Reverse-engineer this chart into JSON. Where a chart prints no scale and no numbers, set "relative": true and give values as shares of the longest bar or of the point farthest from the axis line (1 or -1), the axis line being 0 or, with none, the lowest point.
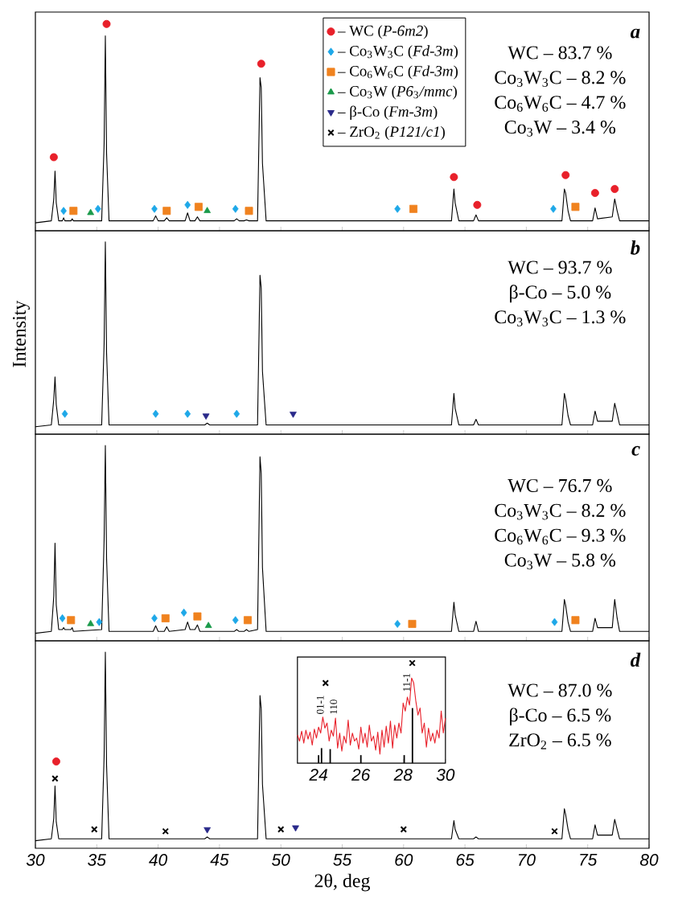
{
  "chart_data": [
    {
      "type": "line",
      "relative": true,
      "title": "a",
      "legend": "top",
      "tick_labels": false,
      "xlim": [
        30,
        80
      ],
      "xticks": [
        30,
        35,
        40,
        45,
        50,
        55,
        60,
        65,
        70,
        75,
        80
      ],
      "x": [
        30,
        31.3,
        31.5,
        31.6,
        31.7,
        31.9,
        32.2,
        32.3,
        32.4,
        32.9,
        33.0,
        33.1,
        35.4,
        35.6,
        35.7,
        35.8,
        36.0,
        39.6,
        39.8,
        40.0,
        40.5,
        40.7,
        40.9,
        42.2,
        42.4,
        42.6,
        43.0,
        43.2,
        43.4,
        43.8,
        44.0,
        44.2,
        46.2,
        46.4,
        46.6,
        47.0,
        47.2,
        47.4,
        48.1,
        48.3,
        48.4,
        48.5,
        48.8,
        63.9,
        64.1,
        64.2,
        64.5,
        65.7,
        65.9,
        66.1,
        72.9,
        73.1,
        73.2,
        73.4,
        73.6,
        75.4,
        75.6,
        75.8,
        77.0,
        77.2,
        77.4,
        77.6,
        80
      ],
      "annotations": [
        "WC – 83.7 %",
        "Co$_{3}$W$_{3}$C – 8.2 %",
        "Co$_{6}$W$_{6}$C – 4.7 %",
        "Co$_{3}$W – 3.4 %"
      ],
      "series": [
        {
          "color": "#000000",
          "values": [
            0,
            0.01,
            0.12,
            0.26,
            0.1,
            0.01,
            0.01,
            0.025,
            0.01,
            0.01,
            0.02,
            0.01,
            0.01,
            0.4,
            0.94,
            0.35,
            0.01,
            0.01,
            0.035,
            0.01,
            0.01,
            0.025,
            0.01,
            0.01,
            0.05,
            0.01,
            0.01,
            0.03,
            0.01,
            0.01,
            0.01,
            0.01,
            0.01,
            0.02,
            0.01,
            0.01,
            0.015,
            0.01,
            0.01,
            0.73,
            0.68,
            0.3,
            0.01,
            0.01,
            0.17,
            0.1,
            0.01,
            0.01,
            0.04,
            0.01,
            0.01,
            0.17,
            0.15,
            0.06,
            0.01,
            0.01,
            0.075,
            0.02,
            0.03,
            0.12,
            0.06,
            0.01,
            0.01
          ]
        },
        {
          "type": "scatter",
          "name": "– WC (*P-6m2*)",
          "color": "#e8202a",
          "marker": "circle",
          "x": [
            31.5,
            35.8,
            48.4,
            64.1,
            66.0,
            73.2,
            75.6,
            77.2
          ],
          "values": [
            0.33,
            1.0,
            0.8,
            0.23,
            0.09,
            0.24,
            0.15,
            0.17
          ]
        },
        {
          "type": "scatter",
          "name": "– Co$_{3}$W$_{3}$C (*Fd-3m*)",
          "color": "#1ea8e8",
          "marker": "diamond",
          "x": [
            32.3,
            35.1,
            39.7,
            42.4,
            46.3,
            59.5,
            72.2
          ],
          "values": [
            0.06,
            0.07,
            0.07,
            0.09,
            0.07,
            0.07,
            0.07
          ]
        },
        {
          "type": "scatter",
          "name": "– Co$_{6}$W$_{6}$C (*Fd-3m*)",
          "color": "#f0821e",
          "marker": "square",
          "x": [
            33.1,
            40.7,
            43.3,
            47.4,
            60.8,
            74.0
          ],
          "values": [
            0.06,
            0.06,
            0.08,
            0.06,
            0.07,
            0.08
          ]
        },
        {
          "type": "scatter",
          "name": "– Co$_{3}$W (*P6*$_{3}$*/mmc*)",
          "color": "#1a9a4a",
          "marker": "triangle",
          "x": [
            34.5,
            44.0
          ],
          "values": [
            0.05,
            0.06
          ]
        },
        {
          "type": "scatter",
          "name": "– β-Co (*Fm-3m*)",
          "color": "#2a2a8a",
          "marker": "triangle-down",
          "values": [
            null,
            null,
            null,
            null,
            null,
            null,
            null,
            null,
            null,
            null,
            null,
            null,
            null,
            null,
            null,
            null,
            null,
            null,
            null,
            null,
            null,
            null,
            null,
            null,
            null,
            null,
            null,
            null,
            null,
            null,
            null,
            null,
            null,
            null,
            null,
            null,
            null,
            null,
            null,
            null,
            null,
            null,
            null,
            null,
            null,
            null,
            null,
            null,
            null,
            null,
            null,
            null,
            null,
            null,
            null,
            null,
            null,
            null,
            null,
            null,
            null,
            null,
            null
          ]
        },
        {
          "type": "scatter",
          "name": "– ZrO$_{2}$ (*P121/c1*)",
          "color": "#000000",
          "marker": "cross",
          "values": [
            null,
            null,
            null,
            null,
            null,
            null,
            null,
            null,
            null,
            null,
            null,
            null,
            null,
            null,
            null,
            null,
            null,
            null,
            null,
            null,
            null,
            null,
            null,
            null,
            null,
            null,
            null,
            null,
            null,
            null,
            null,
            null,
            null,
            null,
            null,
            null,
            null,
            null,
            null,
            null,
            null,
            null,
            null,
            null,
            null,
            null,
            null,
            null,
            null,
            null,
            null,
            null,
            null,
            null,
            null,
            null,
            null,
            null,
            null,
            null,
            null,
            null,
            null
          ]
        }
      ]
    },
    {
      "type": "line",
      "relative": true,
      "title": "b",
      "ylabel": "Intensity",
      "tick_labels": false,
      "xlim": [
        30,
        80
      ],
      "xticks": [
        30,
        35,
        40,
        45,
        50,
        55,
        60,
        65,
        70,
        75,
        80
      ],
      "x": [
        30,
        31.3,
        31.5,
        31.6,
        31.7,
        31.9,
        32.2,
        32.3,
        32.4,
        32.9,
        33.0,
        33.1,
        35.4,
        35.6,
        35.7,
        35.8,
        36.0,
        39.6,
        39.8,
        40.0,
        40.5,
        40.7,
        40.9,
        42.2,
        42.4,
        42.6,
        43.0,
        43.2,
        43.4,
        43.8,
        44.0,
        44.2,
        46.2,
        46.4,
        46.6,
        47.0,
        47.2,
        47.4,
        48.1,
        48.3,
        48.4,
        48.5,
        48.8,
        63.9,
        64.1,
        64.2,
        64.5,
        65.7,
        65.9,
        66.1,
        72.9,
        73.1,
        73.2,
        73.4,
        73.6,
        75.4,
        75.6,
        75.8,
        77.0,
        77.2,
        77.4,
        77.6,
        80
      ],
      "annotations": [
        "WC – 93.7 %",
        "β-Co – 5.0 %",
        "Co$_{3}$W$_{3}$C – 1.3 %"
      ],
      "series": [
        {
          "color": "#000000",
          "values": [
            0,
            0.01,
            0.15,
            0.27,
            0.12,
            0.01,
            0.01,
            0.01,
            0.01,
            0.01,
            0.01,
            0.01,
            0.01,
            0.45,
            1,
            0.4,
            0.01,
            0.01,
            0.01,
            0.01,
            0.01,
            0.01,
            0.01,
            0.01,
            0.01,
            0.01,
            0.01,
            0.01,
            0.01,
            0.01,
            0.02,
            0.01,
            0.01,
            0.01,
            0.01,
            0.01,
            0.01,
            0.01,
            0.01,
            0.82,
            0.75,
            0.3,
            0.01,
            0.01,
            0.18,
            0.1,
            0.01,
            0.01,
            0.04,
            0.01,
            0.01,
            0.18,
            0.15,
            0.06,
            0.01,
            0.01,
            0.085,
            0.03,
            0.03,
            0.127,
            0.07,
            0.01,
            0.01
          ]
        },
        {
          "type": "scatter",
          "color": "#1ea8e8",
          "marker": "diamond",
          "x": [
            32.4,
            39.8,
            42.4,
            46.4
          ],
          "values": [
            0.07,
            0.07,
            0.07,
            0.07
          ]
        },
        {
          "type": "scatter",
          "color": "#2a2a8a",
          "marker": "triangle-down",
          "x": [
            43.9,
            51.0
          ],
          "values": [
            0.06,
            0.07
          ]
        }
      ]
    },
    {
      "type": "line",
      "relative": true,
      "title": "c",
      "tick_labels": false,
      "xlim": [
        30,
        80
      ],
      "xticks": [
        30,
        35,
        40,
        45,
        50,
        55,
        60,
        65,
        70,
        75,
        80
      ],
      "x": [
        30,
        31.3,
        31.5,
        31.6,
        31.7,
        31.9,
        32.2,
        32.3,
        32.4,
        32.9,
        33.0,
        33.1,
        35.4,
        35.6,
        35.7,
        35.8,
        36.0,
        39.6,
        39.8,
        40.0,
        40.5,
        40.7,
        40.9,
        42.2,
        42.4,
        42.6,
        43.0,
        43.2,
        43.4,
        43.8,
        44.0,
        44.2,
        46.2,
        46.4,
        46.6,
        47.0,
        47.2,
        47.4,
        48.1,
        48.3,
        48.4,
        48.5,
        48.8,
        63.9,
        64.1,
        64.2,
        64.5,
        65.7,
        65.9,
        66.1,
        72.9,
        73.1,
        73.2,
        73.4,
        73.6,
        75.4,
        75.6,
        75.8,
        77.0,
        77.2,
        77.4,
        77.6,
        80
      ],
      "annotations": [
        "WC – 76.7 %",
        "Co$_{3}$W$_{3}$C – 8.2 %",
        "Co$_{6}$W$_{6}$C – 9.3 %",
        "Co$_{3}$W – 5.8 %"
      ],
      "series": [
        {
          "color": "#000000",
          "values": [
            0,
            0.01,
            0.2,
            0.48,
            0.15,
            0.02,
            0.02,
            0.03,
            0.02,
            0.02,
            0.03,
            0.01,
            0.02,
            0.5,
            1,
            0.4,
            0.01,
            0.01,
            0.04,
            0.01,
            0.01,
            0.035,
            0.01,
            0.02,
            0.06,
            0.02,
            0.02,
            0.045,
            0.01,
            0.01,
            0.01,
            0.01,
            0.01,
            0.02,
            0.01,
            0.01,
            0.02,
            0.01,
            0.02,
            0.94,
            0.85,
            0.35,
            0.01,
            0.01,
            0.165,
            0.1,
            0.01,
            0.01,
            0.064,
            0.01,
            0.01,
            0.18,
            0.15,
            0.06,
            0.01,
            0.01,
            0.08,
            0.03,
            0.03,
            0.18,
            0.08,
            0.01,
            0.01
          ]
        },
        {
          "type": "scatter",
          "color": "#1ea8e8",
          "marker": "diamond",
          "x": [
            32.2,
            35.2,
            39.7,
            42.1,
            46.3,
            59.5,
            72.3
          ],
          "values": [
            0.08,
            0.06,
            0.08,
            0.11,
            0.07,
            0.05,
            0.06
          ]
        },
        {
          "type": "scatter",
          "color": "#f0821e",
          "marker": "square",
          "x": [
            32.9,
            40.6,
            43.2,
            47.3,
            60.7,
            74.0
          ],
          "values": [
            0.07,
            0.08,
            0.09,
            0.07,
            0.05,
            0.07
          ]
        },
        {
          "type": "scatter",
          "color": "#1a9a4a",
          "marker": "triangle",
          "x": [
            34.5,
            44.1
          ],
          "values": [
            0.05,
            0.04
          ]
        }
      ]
    },
    {
      "type": "line",
      "relative": true,
      "title": "d",
      "xlabel": "2θ, deg",
      "tick_labels": "x",
      "xlim": [
        30,
        80
      ],
      "xticks": [
        30,
        35,
        40,
        45,
        50,
        55,
        60,
        65,
        70,
        75,
        80
      ],
      "x": [
        30,
        31.3,
        31.5,
        31.6,
        31.7,
        31.9,
        32.2,
        32.3,
        32.4,
        32.9,
        33.0,
        33.1,
        35.4,
        35.6,
        35.7,
        35.8,
        36.0,
        39.6,
        39.8,
        40.0,
        40.5,
        40.7,
        40.9,
        42.2,
        42.4,
        42.6,
        43.0,
        43.2,
        43.4,
        43.8,
        44.0,
        44.2,
        46.2,
        46.4,
        46.6,
        47.0,
        47.2,
        47.4,
        48.1,
        48.3,
        48.4,
        48.5,
        48.8,
        63.9,
        64.1,
        64.2,
        64.5,
        65.7,
        65.9,
        66.1,
        72.9,
        73.1,
        73.2,
        73.4,
        73.6,
        75.4,
        75.6,
        75.8,
        77.0,
        77.2,
        77.4,
        77.6,
        80
      ],
      "annotations": [
        "WC – 87.0 %",
        "β-Co – 6.5 %",
        "ZrO$_{2}$ – 6.5 %"
      ],
      "series": [
        {
          "color": "#000000",
          "values": [
            0,
            0.01,
            0.12,
            0.29,
            0.1,
            0.01,
            0.01,
            0.01,
            0.01,
            0.01,
            0.01,
            0.01,
            0.01,
            0.45,
            1,
            0.4,
            0.01,
            0.01,
            0.01,
            0.01,
            0.01,
            0.01,
            0.01,
            0.01,
            0.01,
            0.01,
            0.01,
            0.01,
            0.01,
            0.01,
            0.02,
            0.01,
            0.01,
            0.01,
            0.01,
            0.01,
            0.01,
            0.01,
            0.01,
            0.77,
            0.7,
            0.3,
            0.01,
            0.01,
            0.107,
            0.06,
            0.01,
            0.01,
            0.02,
            0.01,
            0.01,
            0.17,
            0.14,
            0.06,
            0.01,
            0.01,
            0.084,
            0.03,
            0.03,
            0.113,
            0.06,
            0.01,
            0.01
          ]
        },
        {
          "type": "scatter",
          "color": "#e8202a",
          "marker": "circle",
          "x": [
            31.7
          ],
          "values": [
            0.42
          ]
        },
        {
          "type": "scatter",
          "color": "#000000",
          "marker": "cross",
          "x": [
            31.6,
            34.8,
            40.6,
            50.0,
            60.0,
            72.3
          ],
          "values": [
            0.33,
            0.06,
            0.05,
            0.06,
            0.06,
            0.05
          ]
        },
        {
          "type": "scatter",
          "color": "#2a2a8a",
          "marker": "triangle-down",
          "x": [
            44.0,
            51.2
          ],
          "values": [
            0.06,
            0.07
          ]
        }
      ]
    },
    {
      "type": "line",
      "relative": true,
      "tick_labels": "x",
      "xlim": [
        23,
        30
      ],
      "xticks": [
        24,
        26,
        28,
        30
      ],
      "x": [
        23.0,
        23.1,
        23.2,
        23.3,
        23.4,
        23.5,
        23.6,
        23.7,
        23.8,
        23.9,
        24.0,
        24.1,
        24.2,
        24.3,
        24.4,
        24.5,
        24.6,
        24.7,
        24.8,
        24.9,
        25.0,
        25.1,
        25.2,
        25.3,
        25.4,
        25.5,
        25.6,
        25.7,
        25.8,
        25.9,
        26.0,
        26.1,
        26.2,
        26.3,
        26.4,
        26.5,
        26.6,
        26.7,
        26.8,
        26.9,
        27.0,
        27.1,
        27.2,
        27.3,
        27.4,
        27.5,
        27.6,
        27.7,
        27.8,
        27.9,
        28.0,
        28.1,
        28.2,
        28.3,
        28.4,
        28.5,
        28.6,
        28.7,
        28.8,
        28.9,
        29.0,
        29.1,
        29.2,
        29.3,
        29.4,
        29.5,
        29.6,
        29.7,
        29.8,
        29.9,
        30.0
      ],
      "annotations": [
        "01-1",
        "110",
        "11-1"
      ],
      "series": [
        {
          "color": "#e8202a",
          "values": [
            0.28,
            0.22,
            0.32,
            0.2,
            0.33,
            0.24,
            0.31,
            0.18,
            0.34,
            0.25,
            0.36,
            0.3,
            0.46,
            0.35,
            0.4,
            0.22,
            0.33,
            0.27,
            0.45,
            0.15,
            0.3,
            0.12,
            0.27,
            0.2,
            0.43,
            0.18,
            0.3,
            0.22,
            0.25,
            0.14,
            0.36,
            0.2,
            0.3,
            0.16,
            0.38,
            0.22,
            0.27,
            0.13,
            0.31,
            0.09,
            0.33,
            0.16,
            0.37,
            0.2,
            0.42,
            0.15,
            0.38,
            0.25,
            0.4,
            0.3,
            0.6,
            0.52,
            0.66,
            0.58,
            0.85,
            0.8,
            0.62,
            0.48,
            0.55,
            0.3,
            0.4,
            0.16,
            0.35,
            0.22,
            0.3,
            0.2,
            0.33,
            0.25,
            0.52,
            0.3,
            0.45
          ]
        },
        {
          "type": "bar",
          "color": "#000000",
          "x": [
            24.0,
            24.14,
            24.55,
            26.0,
            28.05,
            28.44
          ],
          "values": [
            0.08,
            0.15,
            0.14,
            0.08,
            0.08,
            0.55
          ]
        },
        {
          "type": "scatter",
          "color": "#000000",
          "marker": "cross",
          "x": [
            24.33,
            28.43
          ],
          "values": [
            0.8,
            1.0
          ]
        }
      ]
    }
  ]
}
